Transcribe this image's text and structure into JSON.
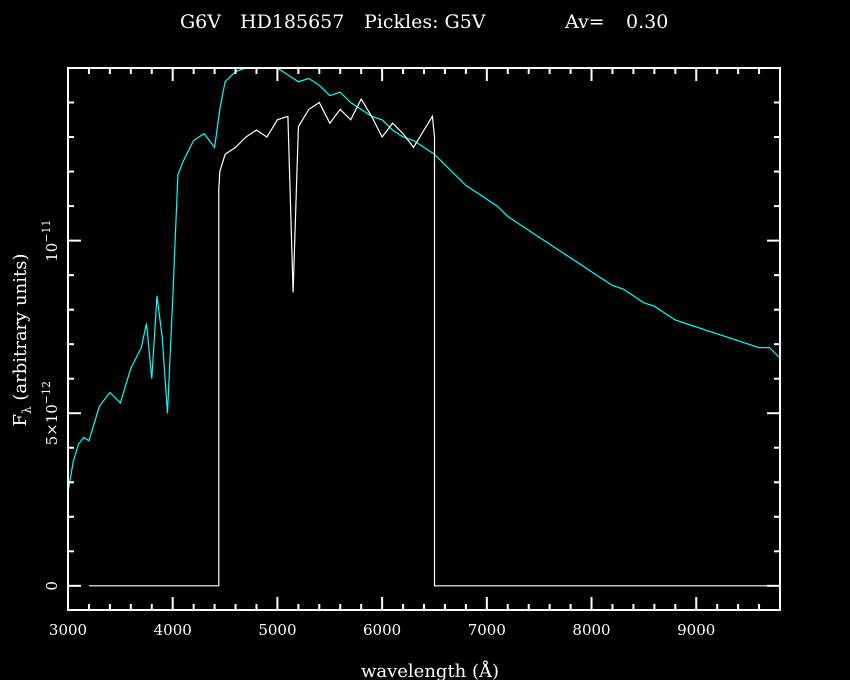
{
  "title": {
    "spectral_type": "G6V",
    "star": "HD185657",
    "pickles": "Pickles: G5V",
    "av_label": "Av=",
    "av_value": "0.30"
  },
  "colors": {
    "background": "#000000",
    "foreground": "#ffffff",
    "pickles_series": "#00ffff",
    "observed_series": "#ffffff"
  },
  "chart_data": {
    "type": "line",
    "title": "G6V  HD185657  Pickles: G5V  Av= 0.30",
    "xlabel": "wavelength (Å)",
    "ylabel": "F_λ (arbitrary units)",
    "xlim": [
      3000,
      9800
    ],
    "ylim": [
      -7e-13,
      1.5e-11
    ],
    "grid": false,
    "x_ticks": [
      3000,
      4000,
      5000,
      6000,
      7000,
      8000,
      9000
    ],
    "x_tick_labels": [
      "3000",
      "4000",
      "5000",
      "6000",
      "7000",
      "8000",
      "9000"
    ],
    "y_ticks": [
      0,
      5e-12,
      1e-11
    ],
    "y_tick_labels": [
      {
        "mantissa": "0",
        "exponent": ""
      },
      {
        "mantissa": "5×10",
        "exponent": "−12"
      },
      {
        "mantissa": "10",
        "exponent": "−11"
      }
    ],
    "series": [
      {
        "color": "#00ffff",
        "x": [
          3000,
          3050,
          3100,
          3150,
          3200,
          3300,
          3400,
          3500,
          3600,
          3700,
          3750,
          3800,
          3850,
          3900,
          3950,
          4000,
          4050,
          4100,
          4200,
          4300,
          4400,
          4450,
          4500,
          4600,
          4700,
          4800,
          4900,
          5000,
          5100,
          5200,
          5300,
          5400,
          5500,
          5600,
          5700,
          5800,
          5900,
          6000,
          6100,
          6200,
          6300,
          6400,
          6500,
          6600,
          6700,
          6800,
          6900,
          7000,
          7100,
          7200,
          7300,
          7400,
          7500,
          7600,
          7700,
          7800,
          7900,
          8000,
          8100,
          8200,
          8300,
          8400,
          8500,
          8600,
          8700,
          8800,
          8900,
          9000,
          9100,
          9200,
          9300,
          9400,
          9500,
          9600,
          9700,
          9800
        ],
        "y": [
          2.7e-12,
          3.6e-12,
          4.1e-12,
          4.3e-12,
          4.2e-12,
          5.2e-12,
          5.6e-12,
          5.3e-12,
          6.3e-12,
          6.9e-12,
          7.6e-12,
          6e-12,
          8.4e-12,
          7.2e-12,
          5e-12,
          8.3e-12,
          1.19e-11,
          1.23e-11,
          1.29e-11,
          1.31e-11,
          1.27e-11,
          1.38e-11,
          1.46e-11,
          1.49e-11,
          1.52e-11,
          1.53e-11,
          1.52e-11,
          1.5e-11,
          1.48e-11,
          1.46e-11,
          1.47e-11,
          1.45e-11,
          1.42e-11,
          1.43e-11,
          1.4e-11,
          1.38e-11,
          1.36e-11,
          1.35e-11,
          1.32e-11,
          1.3e-11,
          1.29e-11,
          1.27e-11,
          1.25e-11,
          1.22e-11,
          1.19e-11,
          1.16e-11,
          1.14e-11,
          1.12e-11,
          1.1e-11,
          1.07e-11,
          1.05e-11,
          1.03e-11,
          1.01e-11,
          9.9e-12,
          9.7e-12,
          9.5e-12,
          9.3e-12,
          9.1e-12,
          8.9e-12,
          8.7e-12,
          8.6e-12,
          8.4e-12,
          8.2e-12,
          8.1e-12,
          7.9e-12,
          7.7e-12,
          7.6e-12,
          7.5e-12,
          7.4e-12,
          7.3e-12,
          7.2e-12,
          7.1e-12,
          7e-12,
          6.9e-12,
          6.9e-12,
          6.6e-12
        ]
      },
      {
        "color": "#ffffff",
        "x": [
          3200,
          4440,
          4440,
          4450,
          4500,
          4600,
          4700,
          4800,
          4900,
          5000,
          5100,
          5150,
          5200,
          5300,
          5400,
          5500,
          5600,
          5700,
          5800,
          5900,
          6000,
          6100,
          6200,
          6300,
          6400,
          6480,
          6500,
          6500,
          9800
        ],
        "y": [
          0,
          0,
          1.15e-11,
          1.2e-11,
          1.25e-11,
          1.27e-11,
          1.3e-11,
          1.32e-11,
          1.3e-11,
          1.35e-11,
          1.36e-11,
          8.5e-12,
          1.33e-11,
          1.38e-11,
          1.4e-11,
          1.34e-11,
          1.38e-11,
          1.35e-11,
          1.41e-11,
          1.36e-11,
          1.3e-11,
          1.34e-11,
          1.31e-11,
          1.27e-11,
          1.32e-11,
          1.36e-11,
          1.3e-11,
          0,
          0
        ]
      }
    ]
  }
}
